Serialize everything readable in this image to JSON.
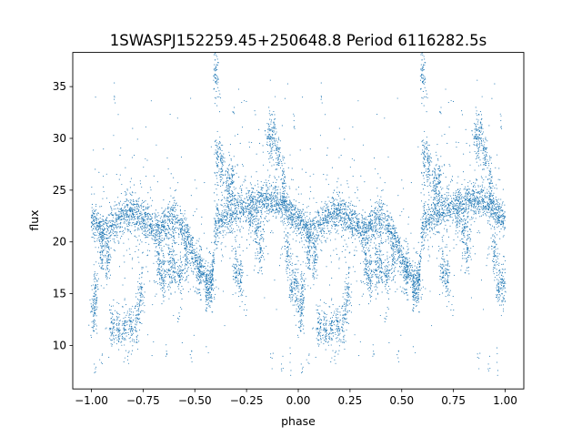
{
  "chart_data": {
    "type": "scatter",
    "title": "1SWASPJ152259.45+250648.8 Period 6116282.5s",
    "xlabel": "phase",
    "ylabel": "flux",
    "xlim": [
      -1.09,
      1.09
    ],
    "ylim": [
      5.8,
      38.3
    ],
    "xticks": [
      "-1.00",
      "-0.75",
      "-0.50",
      "-0.25",
      "0.00",
      "0.25",
      "0.50",
      "0.75",
      "1.00"
    ],
    "yticks": [
      "10",
      "15",
      "20",
      "25",
      "30",
      "35"
    ],
    "grid": false,
    "legend": "none",
    "marker_color": "#1f77b4",
    "series": [
      {
        "description_of_shape": "phase-folded light curve, repeated twice over phase -1 to 1",
        "baseline": [
          [
            0.0,
            22.2
          ],
          [
            0.03,
            21.5
          ],
          [
            0.06,
            21.0
          ],
          [
            0.09,
            21.3
          ],
          [
            0.12,
            22.0
          ],
          [
            0.15,
            22.6
          ],
          [
            0.18,
            22.9
          ],
          [
            0.21,
            22.7
          ],
          [
            0.24,
            22.2
          ],
          [
            0.27,
            21.8
          ],
          [
            0.3,
            21.2
          ],
          [
            0.33,
            21.0
          ],
          [
            0.36,
            21.8
          ],
          [
            0.4,
            22.4
          ],
          [
            0.43,
            21.5
          ],
          [
            0.46,
            20.6
          ],
          [
            0.48,
            19.5
          ],
          [
            0.5,
            18.5
          ],
          [
            0.53,
            17.6
          ],
          [
            0.56,
            15.8
          ],
          [
            0.58,
            15.6
          ],
          [
            0.6,
            21.5
          ],
          [
            0.63,
            22.2
          ],
          [
            0.66,
            22.6
          ],
          [
            0.7,
            23.0
          ],
          [
            0.74,
            23.4
          ],
          [
            0.78,
            23.6
          ],
          [
            0.82,
            23.9
          ],
          [
            0.86,
            24.1
          ],
          [
            0.9,
            23.7
          ],
          [
            0.94,
            23.2
          ],
          [
            0.97,
            22.6
          ],
          [
            1.0,
            22.2
          ]
        ],
        "clumps": [
          [
            0.1,
            11.8
          ],
          [
            0.13,
            11.6
          ],
          [
            0.16,
            11.5
          ],
          [
            0.19,
            11.8
          ],
          [
            0.22,
            12.3
          ],
          [
            0.24,
            14.6
          ],
          [
            0.33,
            18.0
          ],
          [
            0.35,
            16.6
          ],
          [
            0.38,
            17.5
          ],
          [
            0.4,
            17.9
          ],
          [
            0.43,
            16.9
          ],
          [
            0.46,
            18.2
          ],
          [
            0.52,
            16.8
          ],
          [
            0.56,
            15.6
          ],
          [
            0.58,
            15.8
          ],
          [
            0.6,
            36.0
          ],
          [
            0.61,
            28.2
          ],
          [
            0.63,
            27.4
          ],
          [
            0.66,
            25.5
          ],
          [
            0.68,
            26.3
          ],
          [
            0.7,
            17.6
          ],
          [
            0.72,
            16.4
          ],
          [
            0.77,
            22.8
          ],
          [
            0.8,
            21.1
          ],
          [
            0.82,
            19.2
          ],
          [
            0.86,
            29.9
          ],
          [
            0.88,
            30.4
          ],
          [
            0.9,
            28.2
          ],
          [
            0.93,
            25.5
          ],
          [
            0.95,
            19.0
          ],
          [
            0.97,
            16.0
          ],
          [
            0.99,
            15.5
          ],
          [
            0.05,
            19.0
          ],
          [
            0.08,
            18.5
          ],
          [
            0.01,
            13.0
          ],
          [
            0.02,
            15.2
          ]
        ],
        "outliers": [
          [
            0.02,
            7.8
          ],
          [
            0.05,
            8.5
          ],
          [
            0.18,
            8.8
          ],
          [
            0.36,
            9.6
          ],
          [
            0.48,
            9.2
          ],
          [
            0.53,
            17.2
          ],
          [
            0.62,
            33.8
          ],
          [
            0.87,
            8.7
          ],
          [
            0.92,
            8.0
          ],
          [
            0.96,
            8.5
          ],
          [
            0.11,
            34.0
          ],
          [
            0.98,
            31.5
          ],
          [
            0.69,
            32.8
          ],
          [
            0.42,
            12.6
          ],
          [
            0.75,
            13.2
          ]
        ]
      }
    ]
  }
}
